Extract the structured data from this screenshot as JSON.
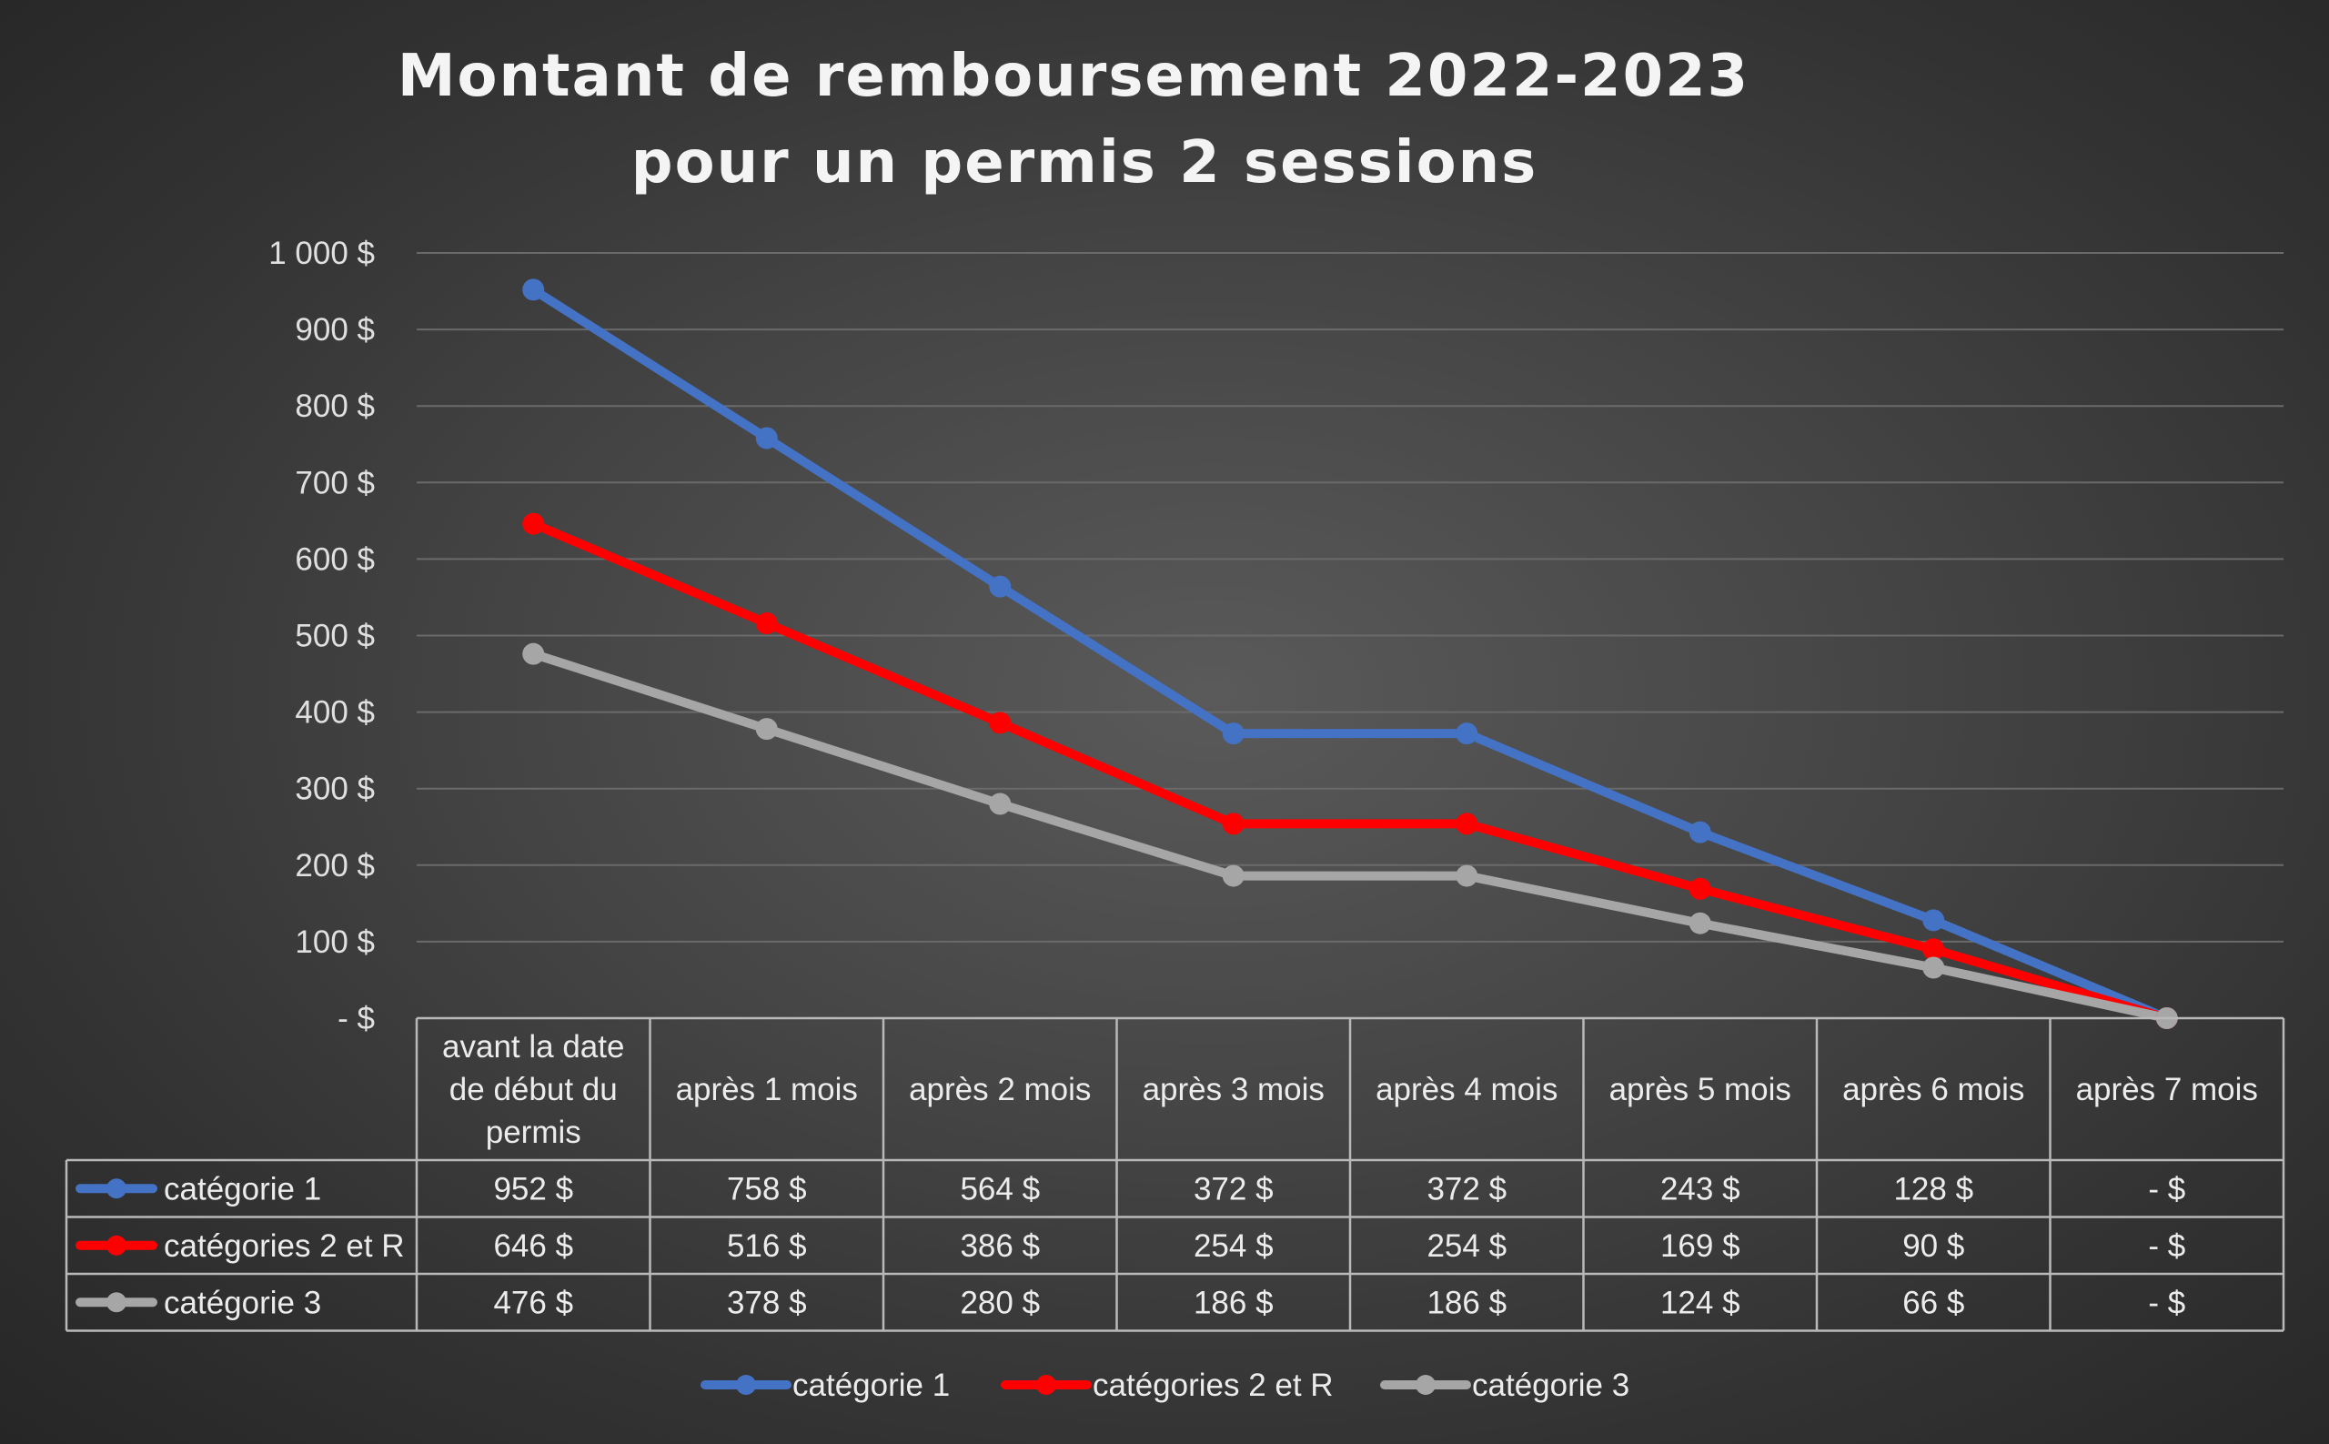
{
  "chart_data": {
    "type": "line",
    "title": [
      "Montant de remboursement 2022-2023",
      "pour un permis 2 sessions"
    ],
    "categories": [
      [
        "avant la date",
        "de début du",
        "permis"
      ],
      [
        "après 1 mois"
      ],
      [
        "après 2 mois"
      ],
      [
        "après 3 mois"
      ],
      [
        "après 4 mois"
      ],
      [
        "après 5 mois"
      ],
      [
        "après 6 mois"
      ],
      [
        "après 7 mois"
      ]
    ],
    "ylim": [
      0,
      1000
    ],
    "yticks": [
      0,
      100,
      200,
      300,
      400,
      500,
      600,
      700,
      800,
      900,
      1000
    ],
    "ytick_labels": [
      "-  $",
      "100  $",
      "200  $",
      "300  $",
      "400  $",
      "500  $",
      "600  $",
      "700  $",
      "800  $",
      "900  $",
      "1 000  $"
    ],
    "grid": true,
    "legend_position": "bottom",
    "data_table": true,
    "series": [
      {
        "name": "catégorie 1",
        "color": "#4472c4",
        "values": [
          952,
          758,
          564,
          372,
          372,
          243,
          128,
          0
        ],
        "labels": [
          "952  $",
          "758  $",
          "564  $",
          "372  $",
          "372  $",
          "243  $",
          "128  $",
          "-    $"
        ]
      },
      {
        "name": "catégories 2 et R",
        "color": "#ff0000",
        "values": [
          646,
          516,
          386,
          254,
          254,
          169,
          90,
          0
        ],
        "labels": [
          "646  $",
          "516  $",
          "386  $",
          "254  $",
          "254  $",
          "169  $",
          "90  $",
          "-    $"
        ]
      },
      {
        "name": "catégorie 3",
        "color": "#a6a6a6",
        "values": [
          476,
          378,
          280,
          186,
          186,
          124,
          66,
          0
        ],
        "labels": [
          "476  $",
          "378  $",
          "280  $",
          "186  $",
          "186  $",
          "124  $",
          "66  $",
          "-    $"
        ]
      }
    ]
  }
}
